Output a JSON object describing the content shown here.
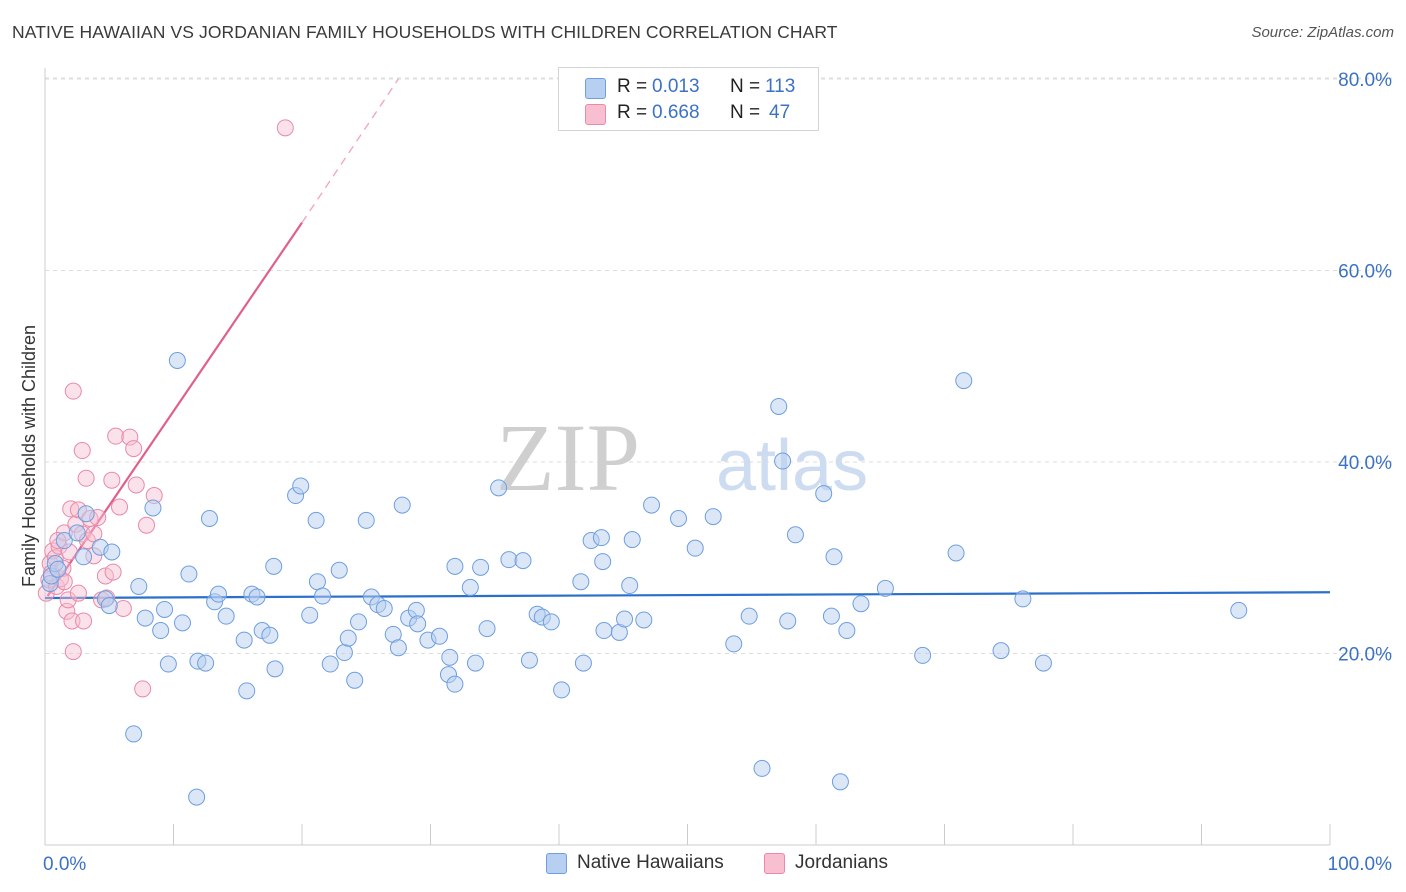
{
  "title": "NATIVE HAWAIIAN VS JORDANIAN FAMILY HOUSEHOLDS WITH CHILDREN CORRELATION CHART",
  "source": "Source: ZipAtlas.com",
  "watermark": {
    "zip": "ZIP",
    "atlas": "atlas"
  },
  "legend": {
    "r_label": "R =",
    "n_label": "N =",
    "series": [
      {
        "r": "0.013",
        "n": "113"
      },
      {
        "r": "0.668",
        "n": "47"
      }
    ]
  },
  "colors": {
    "blue_fill": "#b7cff0",
    "blue_stroke": "#6e9ee0",
    "blue_line": "#2a6fcc",
    "pink_fill": "#f7bfd0",
    "pink_stroke": "#e98aa8",
    "pink_line": "#e0608c",
    "tick": "#3b72c4",
    "grid": "#dddddd"
  },
  "chart_data": {
    "type": "scatter",
    "title": "NATIVE HAWAIIAN VS JORDANIAN FAMILY HOUSEHOLDS WITH CHILDREN CORRELATION CHART",
    "xlabel": "",
    "ylabel": "Family Households with Children",
    "xlim": [
      0,
      100
    ],
    "ylim": [
      0,
      84
    ],
    "x_tick_labels": [
      {
        "value": 0,
        "label": "0.0%"
      },
      {
        "value": 100,
        "label": "100.0%"
      }
    ],
    "y_tick_labels": [
      {
        "value": 20,
        "label": "20.0%"
      },
      {
        "value": 40,
        "label": "40.0%"
      },
      {
        "value": 60,
        "label": "60.0%"
      },
      {
        "value": 80,
        "label": "80.0%"
      }
    ],
    "x_minor_ticks": [
      0,
      10,
      20,
      30,
      40,
      50,
      60,
      70,
      80,
      90,
      100
    ],
    "series": [
      {
        "name": "Native Hawaiians",
        "color": "blue",
        "trend": {
          "x": [
            0,
            100
          ],
          "y": [
            25.8,
            26.4
          ],
          "style": "solid"
        },
        "points": [
          [
            0.4,
            27.3
          ],
          [
            0.5,
            28.1
          ],
          [
            0.8,
            29.4
          ],
          [
            1.0,
            28.8
          ],
          [
            1.5,
            31.8
          ],
          [
            2.5,
            32.6
          ],
          [
            3.0,
            30.1
          ],
          [
            3.2,
            34.6
          ],
          [
            4.3,
            31.1
          ],
          [
            4.7,
            25.7
          ],
          [
            5.0,
            25.0
          ],
          [
            5.2,
            30.6
          ],
          [
            7.3,
            27.0
          ],
          [
            7.8,
            23.7
          ],
          [
            8.4,
            35.2
          ],
          [
            9.0,
            22.4
          ],
          [
            9.3,
            24.6
          ],
          [
            9.6,
            18.9
          ],
          [
            10.3,
            50.6
          ],
          [
            10.7,
            23.2
          ],
          [
            11.2,
            28.3
          ],
          [
            11.9,
            19.2
          ],
          [
            12.5,
            19.0
          ],
          [
            12.8,
            34.1
          ],
          [
            13.2,
            25.4
          ],
          [
            13.5,
            26.2
          ],
          [
            14.1,
            23.9
          ],
          [
            15.5,
            21.4
          ],
          [
            15.7,
            16.1
          ],
          [
            16.1,
            26.2
          ],
          [
            16.5,
            25.9
          ],
          [
            16.9,
            22.4
          ],
          [
            17.5,
            21.9
          ],
          [
            17.8,
            29.1
          ],
          [
            17.9,
            18.4
          ],
          [
            19.5,
            36.5
          ],
          [
            19.9,
            37.5
          ],
          [
            20.6,
            24.0
          ],
          [
            21.1,
            33.9
          ],
          [
            21.2,
            27.5
          ],
          [
            22.2,
            18.9
          ],
          [
            22.9,
            28.7
          ],
          [
            23.3,
            20.1
          ],
          [
            23.6,
            21.6
          ],
          [
            24.1,
            17.2
          ],
          [
            24.4,
            23.3
          ],
          [
            25.0,
            33.9
          ],
          [
            25.4,
            25.9
          ],
          [
            25.9,
            25.1
          ],
          [
            26.4,
            24.7
          ],
          [
            27.1,
            22.0
          ],
          [
            27.5,
            20.6
          ],
          [
            27.8,
            35.5
          ],
          [
            28.3,
            23.7
          ],
          [
            28.9,
            24.5
          ],
          [
            29.0,
            23.1
          ],
          [
            29.8,
            21.4
          ],
          [
            30.7,
            21.8
          ],
          [
            31.4,
            17.8
          ],
          [
            31.5,
            19.6
          ],
          [
            31.9,
            16.8
          ],
          [
            31.9,
            29.1
          ],
          [
            33.1,
            26.9
          ],
          [
            33.5,
            19.0
          ],
          [
            33.9,
            29.0
          ],
          [
            34.4,
            22.6
          ],
          [
            35.3,
            37.3
          ],
          [
            36.1,
            29.8
          ],
          [
            37.2,
            29.7
          ],
          [
            37.7,
            19.3
          ],
          [
            38.3,
            24.1
          ],
          [
            38.7,
            23.8
          ],
          [
            39.4,
            23.3
          ],
          [
            40.2,
            16.2
          ],
          [
            41.7,
            27.5
          ],
          [
            41.9,
            19.0
          ],
          [
            42.5,
            31.8
          ],
          [
            43.3,
            32.1
          ],
          [
            43.4,
            29.6
          ],
          [
            43.5,
            22.4
          ],
          [
            44.7,
            22.2
          ],
          [
            45.1,
            23.6
          ],
          [
            45.5,
            27.1
          ],
          [
            45.7,
            31.9
          ],
          [
            46.6,
            23.5
          ],
          [
            47.2,
            35.5
          ],
          [
            49.3,
            34.1
          ],
          [
            50.6,
            31.0
          ],
          [
            52.0,
            34.3
          ],
          [
            53.6,
            21.0
          ],
          [
            54.8,
            23.9
          ],
          [
            55.8,
            8.0
          ],
          [
            57.1,
            45.8
          ],
          [
            57.4,
            40.1
          ],
          [
            57.8,
            23.4
          ],
          [
            58.4,
            32.4
          ],
          [
            60.6,
            36.7
          ],
          [
            61.2,
            23.9
          ],
          [
            61.4,
            30.1
          ],
          [
            61.9,
            6.6
          ],
          [
            62.4,
            22.4
          ],
          [
            63.5,
            25.2
          ],
          [
            65.4,
            26.8
          ],
          [
            68.3,
            19.8
          ],
          [
            70.9,
            30.5
          ],
          [
            71.5,
            48.5
          ],
          [
            74.4,
            20.3
          ],
          [
            76.1,
            25.7
          ],
          [
            77.7,
            19.0
          ],
          [
            92.9,
            24.5
          ],
          [
            11.8,
            5.0
          ],
          [
            6.9,
            11.6
          ],
          [
            21.6,
            26.0
          ]
        ]
      },
      {
        "name": "Jordanians",
        "color": "pink",
        "trend": {
          "x": [
            0.2,
            20.0
          ],
          "y": [
            26.0,
            65.0
          ],
          "style": "solid",
          "extended": {
            "x": [
              20.0,
              27.5
            ],
            "y": [
              65.0,
              80.0
            ],
            "style": "dashed"
          }
        },
        "points": [
          [
            0.1,
            26.3
          ],
          [
            0.3,
            27.7
          ],
          [
            0.4,
            29.4
          ],
          [
            0.5,
            28.4
          ],
          [
            0.6,
            30.7
          ],
          [
            0.8,
            30.0
          ],
          [
            0.9,
            27.0
          ],
          [
            1.1,
            31.2
          ],
          [
            1.2,
            27.8
          ],
          [
            1.4,
            28.9
          ],
          [
            1.5,
            32.6
          ],
          [
            1.5,
            27.5
          ],
          [
            1.7,
            24.4
          ],
          [
            1.8,
            25.6
          ],
          [
            1.9,
            30.6
          ],
          [
            2.0,
            35.1
          ],
          [
            2.1,
            23.4
          ],
          [
            2.2,
            20.2
          ],
          [
            2.2,
            47.4
          ],
          [
            2.4,
            33.5
          ],
          [
            2.6,
            35.0
          ],
          [
            2.6,
            26.3
          ],
          [
            2.9,
            32.5
          ],
          [
            2.9,
            41.2
          ],
          [
            3.0,
            23.4
          ],
          [
            3.2,
            38.3
          ],
          [
            3.3,
            31.8
          ],
          [
            3.5,
            34.1
          ],
          [
            3.8,
            32.5
          ],
          [
            3.8,
            30.2
          ],
          [
            4.1,
            34.2
          ],
          [
            4.4,
            25.6
          ],
          [
            4.7,
            28.1
          ],
          [
            4.8,
            25.8
          ],
          [
            5.2,
            38.1
          ],
          [
            5.3,
            28.5
          ],
          [
            5.5,
            42.7
          ],
          [
            5.8,
            35.3
          ],
          [
            6.1,
            24.7
          ],
          [
            6.6,
            42.6
          ],
          [
            6.9,
            41.4
          ],
          [
            7.1,
            37.6
          ],
          [
            7.6,
            16.3
          ],
          [
            7.9,
            33.4
          ],
          [
            8.5,
            36.5
          ],
          [
            18.7,
            74.9
          ],
          [
            1.0,
            31.8
          ]
        ]
      }
    ]
  },
  "bottom_legend": [
    "Native Hawaiians",
    "Jordanians"
  ]
}
